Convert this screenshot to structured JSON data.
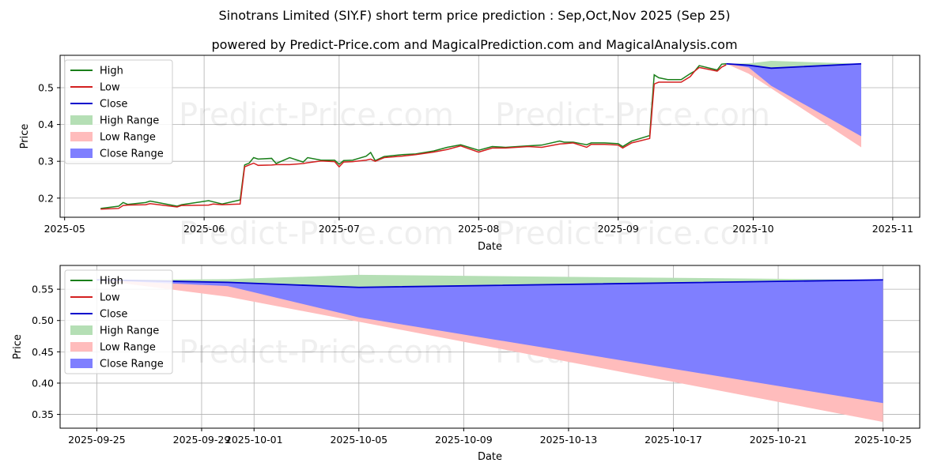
{
  "chart_data": [
    {
      "type": "line",
      "title_line1": "Sinotrans Limited (SIY.F) short term price prediction : Sep,Oct,Nov 2025 (Sep 25)",
      "title_line2": "powered by Predict-Price.com and MagicalPrediction.com and MagicalAnalysis.com",
      "xlabel": "Date",
      "ylabel": "Price",
      "xlim": [
        "2025-04-30",
        "2025-11-07"
      ],
      "ylim": [
        0.148,
        0.588
      ],
      "xticks": [
        "2025-05",
        "2025-06",
        "2025-07",
        "2025-08",
        "2025-09",
        "2025-10",
        "2025-11"
      ],
      "yticks": [
        "0.2",
        "0.3",
        "0.4",
        "0.5"
      ],
      "grid": true,
      "legend_position": "top-left",
      "legend": [
        "High",
        "Low",
        "Close",
        "High Range",
        "Low Range",
        "Close Range"
      ],
      "colors": {
        "high": "#1a7f1a",
        "low": "#d42020",
        "close": "#0000cc",
        "high_range": "#b5dfb5",
        "low_range": "#ffbcbc",
        "close_range": "#7f7fff"
      },
      "watermarks": [
        "Predict-Price.com",
        "Predict-Price.com",
        "Predict-Price.com",
        "Predict-Price.com"
      ],
      "history": {
        "dates": [
          "2025-05-09",
          "2025-05-13",
          "2025-05-14",
          "2025-05-15",
          "2025-05-19",
          "2025-05-20",
          "2025-05-26",
          "2025-05-27",
          "2025-06-02",
          "2025-06-03",
          "2025-06-05",
          "2025-06-09",
          "2025-06-10",
          "2025-06-11",
          "2025-06-12",
          "2025-06-13",
          "2025-06-16",
          "2025-06-17",
          "2025-06-20",
          "2025-06-23",
          "2025-06-24",
          "2025-06-27",
          "2025-06-30",
          "2025-07-01",
          "2025-07-02",
          "2025-07-04",
          "2025-07-07",
          "2025-07-08",
          "2025-07-09",
          "2025-07-11",
          "2025-07-15",
          "2025-07-18",
          "2025-07-22",
          "2025-07-25",
          "2025-07-28",
          "2025-08-01",
          "2025-08-04",
          "2025-08-07",
          "2025-08-12",
          "2025-08-15",
          "2025-08-19",
          "2025-08-20",
          "2025-08-22",
          "2025-08-25",
          "2025-08-26",
          "2025-08-29",
          "2025-09-01",
          "2025-09-02",
          "2025-09-04",
          "2025-09-08",
          "2025-09-09",
          "2025-09-10",
          "2025-09-12",
          "2025-09-15",
          "2025-09-17",
          "2025-09-18",
          "2025-09-19",
          "2025-09-23",
          "2025-09-24",
          "2025-09-25"
        ],
        "high": [
          0.172,
          0.178,
          0.188,
          0.183,
          0.188,
          0.192,
          0.178,
          0.182,
          0.193,
          0.19,
          0.184,
          0.195,
          0.29,
          0.295,
          0.31,
          0.306,
          0.308,
          0.294,
          0.31,
          0.298,
          0.31,
          0.303,
          0.303,
          0.292,
          0.302,
          0.303,
          0.314,
          0.324,
          0.302,
          0.313,
          0.318,
          0.32,
          0.328,
          0.338,
          0.345,
          0.33,
          0.34,
          0.338,
          0.342,
          0.344,
          0.355,
          0.352,
          0.352,
          0.345,
          0.35,
          0.35,
          0.348,
          0.34,
          0.355,
          0.37,
          0.535,
          0.527,
          0.522,
          0.522,
          0.538,
          0.545,
          0.56,
          0.548,
          0.564,
          0.565
        ],
        "low": [
          0.17,
          0.172,
          0.18,
          0.181,
          0.182,
          0.185,
          0.176,
          0.18,
          0.181,
          0.184,
          0.182,
          0.184,
          0.285,
          0.29,
          0.295,
          0.289,
          0.29,
          0.291,
          0.291,
          0.294,
          0.296,
          0.301,
          0.299,
          0.285,
          0.298,
          0.299,
          0.303,
          0.306,
          0.3,
          0.31,
          0.314,
          0.318,
          0.325,
          0.332,
          0.342,
          0.325,
          0.336,
          0.336,
          0.34,
          0.338,
          0.347,
          0.348,
          0.35,
          0.338,
          0.346,
          0.346,
          0.344,
          0.336,
          0.35,
          0.362,
          0.51,
          0.515,
          0.515,
          0.515,
          0.53,
          0.545,
          0.555,
          0.545,
          0.556,
          0.562
        ]
      },
      "forecast": {
        "dates": [
          "2025-09-25",
          "2025-09-30",
          "2025-10-05",
          "2025-10-25"
        ],
        "close": [
          0.565,
          0.561,
          0.553,
          0.565
        ],
        "high_range_upper": [
          0.565,
          0.566,
          0.573,
          0.565
        ],
        "low_range_lower": [
          0.565,
          0.538,
          0.498,
          0.338
        ],
        "close_range_lower": [
          0.565,
          0.555,
          0.505,
          0.368
        ]
      }
    },
    {
      "type": "line",
      "xlabel": "Date",
      "ylabel": "Price",
      "xlim": [
        "2025-09-23.6",
        "2025-10-26.4"
      ],
      "ylim": [
        0.328,
        0.588
      ],
      "xticks": [
        "2025-09-25",
        "2025-09-29",
        "2025-10-01",
        "2025-10-05",
        "2025-10-09",
        "2025-10-13",
        "2025-10-17",
        "2025-10-21",
        "2025-10-25"
      ],
      "yticks": [
        "0.35",
        "0.40",
        "0.45",
        "0.50",
        "0.55"
      ],
      "grid": true,
      "legend_position": "top-left",
      "legend": [
        "High",
        "Low",
        "Close",
        "High Range",
        "Low Range",
        "Close Range"
      ],
      "watermarks": [
        "Predict-Price.com",
        "Predict-Price.com"
      ],
      "forecast": {
        "dates": [
          "2025-09-25",
          "2025-09-30",
          "2025-10-05",
          "2025-10-25"
        ],
        "close": [
          0.565,
          0.561,
          0.553,
          0.565
        ],
        "high_range_upper": [
          0.565,
          0.566,
          0.573,
          0.565
        ],
        "low_range_lower": [
          0.565,
          0.538,
          0.498,
          0.338
        ],
        "close_range_lower": [
          0.565,
          0.555,
          0.505,
          0.368
        ]
      }
    }
  ]
}
